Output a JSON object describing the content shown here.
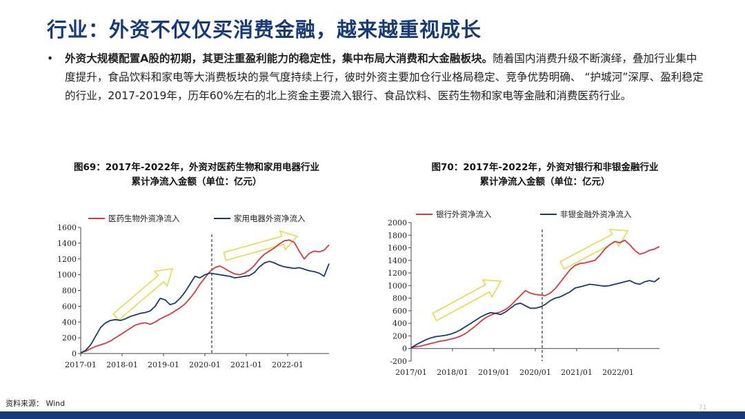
{
  "title": "行业：外资不仅仅买消费金融，越来越重视成长",
  "bullet": {
    "symbol": "•",
    "bold": "外资大规模配置A股的初期，其更注重盈利能力的稳定性，集中布局大消费和大金融板块。",
    "rest": "随着国内消费升级不断演绎，叠加行业集中度提升，食品饮料和家电等大消费板块的景气度持续上行，彼时外资主要加仓行业格局稳定、竞争优势明确、 “护城河”深厚、盈利稳定的行业，2017-2019年，历年60%左右的北上资金主要流入银行、食品饮料、医药生物和家电等金融和消费医药行业。"
  },
  "charts": {
    "left_title_1": "图69：2017年-2022年，外资对医药生物和家用电器行业",
    "left_title_2": "累计净流入金额（单位：亿元）",
    "right_title_1": "图70：2017年-2022年，外资对银行和非银金融行业",
    "right_title_2": "累计净流入金额（单位：亿元）"
  },
  "chart_data": [
    {
      "type": "line",
      "x_tick_labels": [
        "2017-01",
        "2018-01",
        "2019-01",
        "2020-01",
        "2021-01",
        "2022-01"
      ],
      "ylim": [
        0,
        1600
      ],
      "y_ticks": [
        0,
        200,
        400,
        600,
        800,
        1000,
        1200,
        1400,
        1600
      ],
      "legend_position": "top",
      "divider_at": "2020-01",
      "series": [
        {
          "name": "医药生物外资净流入",
          "color": "#d9363e",
          "values": [
            10,
            30,
            60,
            90,
            110,
            130,
            160,
            200,
            240,
            280,
            320,
            360,
            380,
            390,
            370,
            400,
            440,
            470,
            500,
            540,
            580,
            630,
            700,
            780,
            880,
            960,
            1040,
            1090,
            1110,
            1080,
            1040,
            1010,
            1000,
            1020,
            1060,
            1120,
            1200,
            1260,
            1300,
            1340,
            1390,
            1430,
            1440,
            1410,
            1300,
            1200,
            1270,
            1300,
            1290,
            1310,
            1380
          ]
        },
        {
          "name": "家用电器外资净流入",
          "color": "#163a6e",
          "values": [
            10,
            40,
            110,
            220,
            330,
            390,
            420,
            430,
            420,
            440,
            470,
            490,
            510,
            520,
            540,
            600,
            700,
            680,
            620,
            640,
            700,
            780,
            880,
            980,
            960,
            1000,
            1020,
            1010,
            1000,
            990,
            980,
            960,
            970,
            980,
            990,
            1030,
            1100,
            1150,
            1170,
            1150,
            1120,
            1100,
            1090,
            1080,
            1090,
            1070,
            1050,
            1040,
            1020,
            980,
            1140
          ]
        }
      ]
    },
    {
      "type": "line",
      "x_tick_labels": [
        "2017/01",
        "2018/01",
        "2019/01",
        "2020/01",
        "2021/01",
        "2022/01"
      ],
      "ylim": [
        -200,
        2000
      ],
      "y_ticks": [
        -200,
        0,
        200,
        400,
        600,
        800,
        1000,
        1200,
        1400,
        1600,
        1800,
        2000
      ],
      "legend_position": "top",
      "divider_at": "2020/01",
      "series": [
        {
          "name": "银行外资净流入",
          "color": "#d9363e",
          "values": [
            10,
            30,
            40,
            60,
            80,
            100,
            120,
            130,
            150,
            170,
            200,
            240,
            300,
            360,
            430,
            490,
            530,
            560,
            580,
            620,
            680,
            760,
            840,
            920,
            880,
            860,
            850,
            840,
            880,
            950,
            1050,
            1150,
            1250,
            1320,
            1350,
            1360,
            1380,
            1400,
            1480,
            1580,
            1650,
            1700,
            1680,
            1720,
            1650,
            1560,
            1500,
            1520,
            1560,
            1580,
            1620
          ]
        },
        {
          "name": "非银金融外资净流入",
          "color": "#163a6e",
          "values": [
            10,
            60,
            100,
            140,
            170,
            190,
            200,
            210,
            230,
            260,
            300,
            350,
            400,
            450,
            500,
            540,
            570,
            560,
            540,
            580,
            640,
            700,
            720,
            680,
            640,
            640,
            660,
            700,
            760,
            800,
            820,
            860,
            900,
            960,
            980,
            1000,
            1020,
            1010,
            1000,
            990,
            1000,
            1020,
            1040,
            1060,
            1080,
            1040,
            1020,
            1060,
            1080,
            1060,
            1120
          ]
        }
      ]
    }
  ],
  "source": "资料来源：  Wind",
  "page_number": "71"
}
